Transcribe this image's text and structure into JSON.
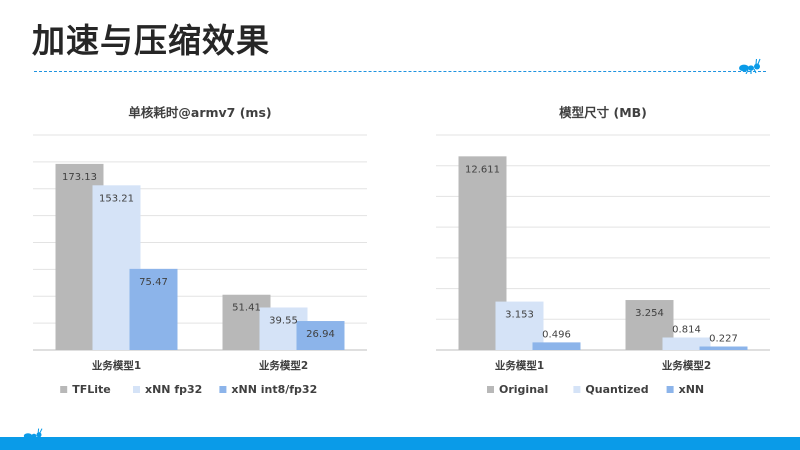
{
  "slide": {
    "title": "加速与压缩效果",
    "accent_color": "#0a9be8",
    "icon": "ant-icon"
  },
  "charts": [
    {
      "type": "bar",
      "title": "单核耗时@armv7 (ms)",
      "categories": [
        "业务模型1",
        "业务模型2"
      ],
      "series": [
        {
          "name": "TFLite",
          "color": "#b8b8b8",
          "values": [
            173.13,
            51.41
          ]
        },
        {
          "name": "xNN fp32",
          "color": "#d5e3f7",
          "values": [
            153.21,
            39.55
          ]
        },
        {
          "name": "xNN int8/fp32",
          "color": "#8cb4ea",
          "values": [
            75.47,
            26.94
          ]
        }
      ],
      "ylim": [
        0,
        200
      ],
      "gridlines": 8,
      "legend_position": "bottom"
    },
    {
      "type": "bar",
      "title": "模型尺寸 (MB)",
      "categories": [
        "业务模型1",
        "业务模型2"
      ],
      "series": [
        {
          "name": "Original",
          "color": "#b8b8b8",
          "values": [
            12.611,
            3.254
          ]
        },
        {
          "name": "Quantized",
          "color": "#d5e3f7",
          "values": [
            3.153,
            0.814
          ]
        },
        {
          "name": "xNN",
          "color": "#8cb4ea",
          "values": [
            0.496,
            0.227
          ]
        }
      ],
      "ylim": [
        0,
        14
      ],
      "gridlines": 7,
      "legend_position": "bottom"
    }
  ]
}
